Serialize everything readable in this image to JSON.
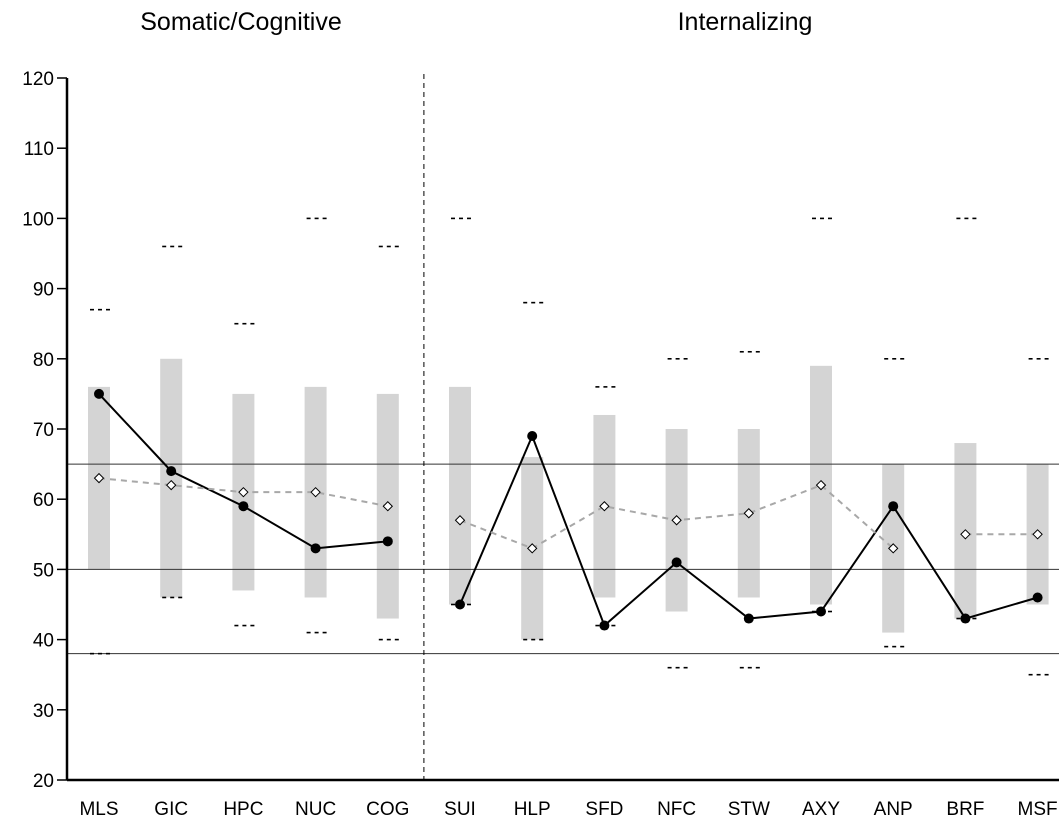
{
  "chart_data": {
    "type": "line",
    "section_titles": [
      "Somatic/Cognitive",
      "Internalizing"
    ],
    "categories": [
      "MLS",
      "GIC",
      "HPC",
      "NUC",
      "COG",
      "SUI",
      "HLP",
      "SFD",
      "NFC",
      "STW",
      "AXY",
      "ANP",
      "BRF",
      "MSF"
    ],
    "ylim": [
      20,
      120
    ],
    "yticks": [
      20,
      30,
      40,
      50,
      60,
      70,
      80,
      90,
      100,
      110,
      120
    ],
    "reference_lines": [
      65,
      50,
      38
    ],
    "section_divider_after_index": 4,
    "bands": [
      {
        "low": 50,
        "high": 76
      },
      {
        "low": 46,
        "high": 80
      },
      {
        "low": 47,
        "high": 75
      },
      {
        "low": 46,
        "high": 76
      },
      {
        "low": 43,
        "high": 75
      },
      {
        "low": 45,
        "high": 76
      },
      {
        "low": 40,
        "high": 66
      },
      {
        "low": 46,
        "high": 72
      },
      {
        "low": 44,
        "high": 70
      },
      {
        "low": 46,
        "high": 70
      },
      {
        "low": 45,
        "high": 79
      },
      {
        "low": 41,
        "high": 65
      },
      {
        "low": 43,
        "high": 68
      },
      {
        "low": 45,
        "high": 65
      }
    ],
    "upper_markers": [
      87,
      96,
      85,
      100,
      96,
      100,
      88,
      76,
      80,
      81,
      100,
      80,
      100,
      80
    ],
    "lower_markers": [
      38,
      46,
      42,
      41,
      40,
      45,
      40,
      42,
      36,
      36,
      44,
      39,
      43,
      35
    ],
    "series": [
      {
        "values": [
          75,
          64,
          59,
          53,
          54,
          45,
          69,
          42,
          51,
          43,
          44,
          59,
          43,
          46
        ],
        "segments": [
          [
            0,
            4
          ],
          [
            5,
            13
          ]
        ],
        "color": "#000000",
        "style": "solid",
        "marker": "filled-circle"
      },
      {
        "values": [
          63,
          62,
          61,
          61,
          59,
          57,
          53,
          59,
          57,
          58,
          62,
          53,
          55,
          55
        ],
        "segments": [
          [
            0,
            4
          ],
          [
            5,
            11
          ],
          [
            12,
            13
          ]
        ],
        "color": "#a8a8a8",
        "style": "dashed",
        "marker": "open-diamond"
      }
    ],
    "colors": {
      "band": "#d4d4d4",
      "axis": "#000000",
      "reference_line": "#333333"
    }
  }
}
